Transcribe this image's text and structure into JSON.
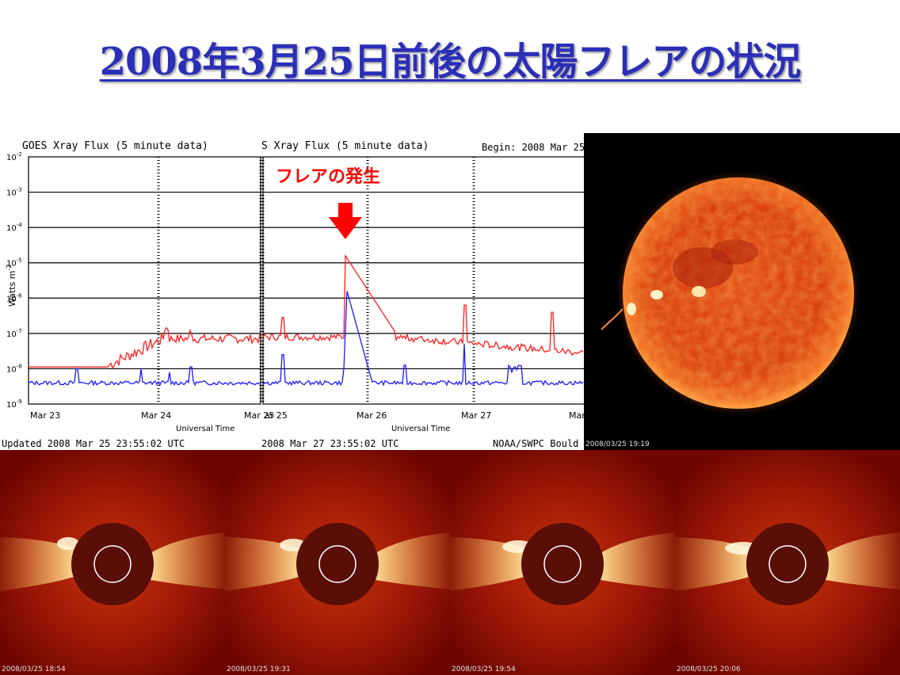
{
  "slide": {
    "title": "2008年3月25日前後の太陽フレアの状況"
  },
  "goes": {
    "left_title": "GOES Xray Flux (5 minute data)",
    "right_title": "S Xray Flux (5 minute data)",
    "begin": "Begin:  2008 Mar 25",
    "y_label": "Watts m",
    "y_label_sup": "-2",
    "y_ticks": [
      "10",
      "10",
      "10",
      "10",
      "10",
      "10",
      "10",
      "10"
    ],
    "y_tick_exps": [
      "-2",
      "-3",
      "-4",
      "-5",
      "-6",
      "-7",
      "-8",
      "-9"
    ],
    "left_x_ticks": [
      "Mar 23",
      "Mar 24",
      "Mar 25"
    ],
    "right_x_ticks": [
      "Mar 26",
      "Mar 27",
      "Mar"
    ],
    "right_x_first": "ar 25",
    "x_label": "Universal Time",
    "left_updated": "Updated 2008 Mar 25 23:55:02 UTC",
    "right_updated": "2008 Mar 27 23:55:02 UTC",
    "credit": "NOAA/SWPC Bould",
    "annotation": "フレアの発生",
    "colors": {
      "long_channel": "#ff1a1a",
      "short_channel": "#1a1aff",
      "annotation": "#ff0000"
    }
  },
  "sun_image": {
    "timestamp": "2008/03/25 19:19"
  },
  "coronagraph": [
    {
      "timestamp": "2008/03/25 18:54"
    },
    {
      "timestamp": "2008/03/25 19:31"
    },
    {
      "timestamp": "2008/03/25 19:54"
    },
    {
      "timestamp": "2008/03/25 20:06"
    }
  ]
}
